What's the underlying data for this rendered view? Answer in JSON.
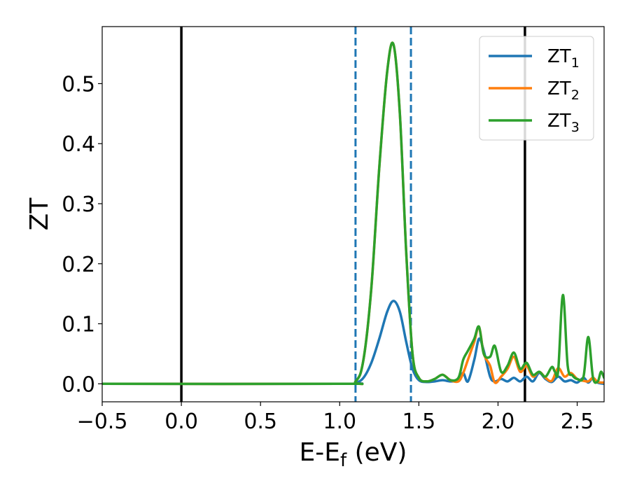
{
  "chart_data": {
    "type": "line",
    "xlabel": "E-E",
    "xlabel_sub": "f",
    "xlabel_unit": " (eV)",
    "ylabel": "ZT",
    "xlim": [
      -0.5,
      2.67
    ],
    "ylim": [
      -0.03,
      0.595
    ],
    "xticks": [
      -0.5,
      0.0,
      0.5,
      1.0,
      1.5,
      2.0,
      2.5
    ],
    "xtick_labels": [
      "−0.5",
      "0.0",
      "0.5",
      "1.0",
      "1.5",
      "2.0",
      "2.5"
    ],
    "yticks": [
      0.0,
      0.1,
      0.2,
      0.3,
      0.4,
      0.5
    ],
    "ytick_labels": [
      "0.0",
      "0.1",
      "0.2",
      "0.3",
      "0.4",
      "0.5"
    ],
    "grid": false,
    "legend_position": "top-right",
    "vertical_lines": [
      {
        "x": 0.0,
        "style": "solid",
        "color": "#000000"
      },
      {
        "x": 2.17,
        "style": "solid",
        "color": "#000000"
      },
      {
        "x": 1.1,
        "style": "dashed",
        "color": "#1f77b4"
      },
      {
        "x": 1.45,
        "style": "dashed",
        "color": "#1f77b4"
      }
    ],
    "series": [
      {
        "name": "ZT",
        "sub": "1",
        "color": "#1f77b4",
        "x": [
          -0.5,
          1.0,
          1.1,
          1.15,
          1.2,
          1.25,
          1.3,
          1.34,
          1.38,
          1.42,
          1.46,
          1.5,
          1.55,
          1.6,
          1.65,
          1.7,
          1.75,
          1.78,
          1.81,
          1.85,
          1.88,
          1.91,
          1.95,
          1.98,
          2.02,
          2.06,
          2.1,
          2.14,
          2.18,
          2.22,
          2.26,
          2.3,
          2.34,
          2.38,
          2.42,
          2.46,
          2.5,
          2.54,
          2.57,
          2.6,
          2.63,
          2.67
        ],
        "values": [
          0.0,
          0.0,
          0.002,
          0.01,
          0.035,
          0.075,
          0.12,
          0.138,
          0.12,
          0.07,
          0.025,
          0.006,
          0.003,
          0.004,
          0.006,
          0.004,
          0.006,
          0.018,
          0.004,
          0.04,
          0.075,
          0.055,
          0.012,
          0.004,
          0.008,
          0.004,
          0.01,
          0.004,
          0.012,
          0.004,
          0.018,
          0.008,
          0.003,
          0.012,
          0.004,
          0.006,
          0.002,
          0.01,
          0.002,
          0.01,
          0.002,
          0.0
        ]
      },
      {
        "name": "ZT",
        "sub": "2",
        "color": "#ff7f0e",
        "x": [
          -0.5,
          1.0,
          1.1,
          1.15,
          1.2,
          1.25,
          1.3,
          1.34,
          1.38,
          1.42,
          1.46,
          1.5,
          1.55,
          1.6,
          1.65,
          1.7,
          1.75,
          1.78,
          1.81,
          1.85,
          1.88,
          1.91,
          1.95,
          1.98,
          2.02,
          2.06,
          2.1,
          2.14,
          2.18,
          2.22,
          2.26,
          2.3,
          2.34,
          2.38,
          2.42,
          2.46,
          2.5,
          2.54,
          2.57,
          2.6,
          2.63,
          2.67
        ],
        "values": [
          0.0,
          0.0,
          0.004,
          0.04,
          0.16,
          0.36,
          0.52,
          0.565,
          0.45,
          0.22,
          0.05,
          0.01,
          0.004,
          0.008,
          0.015,
          0.006,
          0.004,
          0.018,
          0.04,
          0.07,
          0.095,
          0.05,
          0.03,
          0.002,
          0.012,
          0.025,
          0.045,
          0.02,
          0.03,
          0.012,
          0.02,
          0.01,
          0.005,
          0.026,
          0.012,
          0.018,
          0.008,
          0.005,
          0.004,
          0.01,
          0.003,
          0.002
        ]
      },
      {
        "name": "ZT",
        "sub": "3",
        "color": "#2ca02c",
        "x": [
          -0.5,
          1.0,
          1.1,
          1.15,
          1.2,
          1.25,
          1.3,
          1.34,
          1.38,
          1.42,
          1.46,
          1.5,
          1.55,
          1.6,
          1.65,
          1.7,
          1.75,
          1.78,
          1.81,
          1.85,
          1.88,
          1.91,
          1.95,
          1.98,
          2.02,
          2.06,
          2.1,
          2.14,
          2.18,
          2.22,
          2.26,
          2.3,
          2.34,
          2.36,
          2.38,
          2.41,
          2.44,
          2.47,
          2.5,
          2.54,
          2.57,
          2.6,
          2.63,
          2.65,
          2.67
        ],
        "values": [
          0.0,
          0.0,
          0.004,
          0.04,
          0.16,
          0.36,
          0.52,
          0.565,
          0.45,
          0.22,
          0.05,
          0.01,
          0.004,
          0.008,
          0.015,
          0.006,
          0.01,
          0.04,
          0.055,
          0.075,
          0.095,
          0.05,
          0.045,
          0.063,
          0.02,
          0.03,
          0.052,
          0.025,
          0.035,
          0.015,
          0.02,
          0.012,
          0.028,
          0.02,
          0.022,
          0.148,
          0.03,
          0.014,
          0.008,
          0.012,
          0.078,
          0.01,
          0.004,
          0.02,
          0.01
        ]
      }
    ]
  }
}
